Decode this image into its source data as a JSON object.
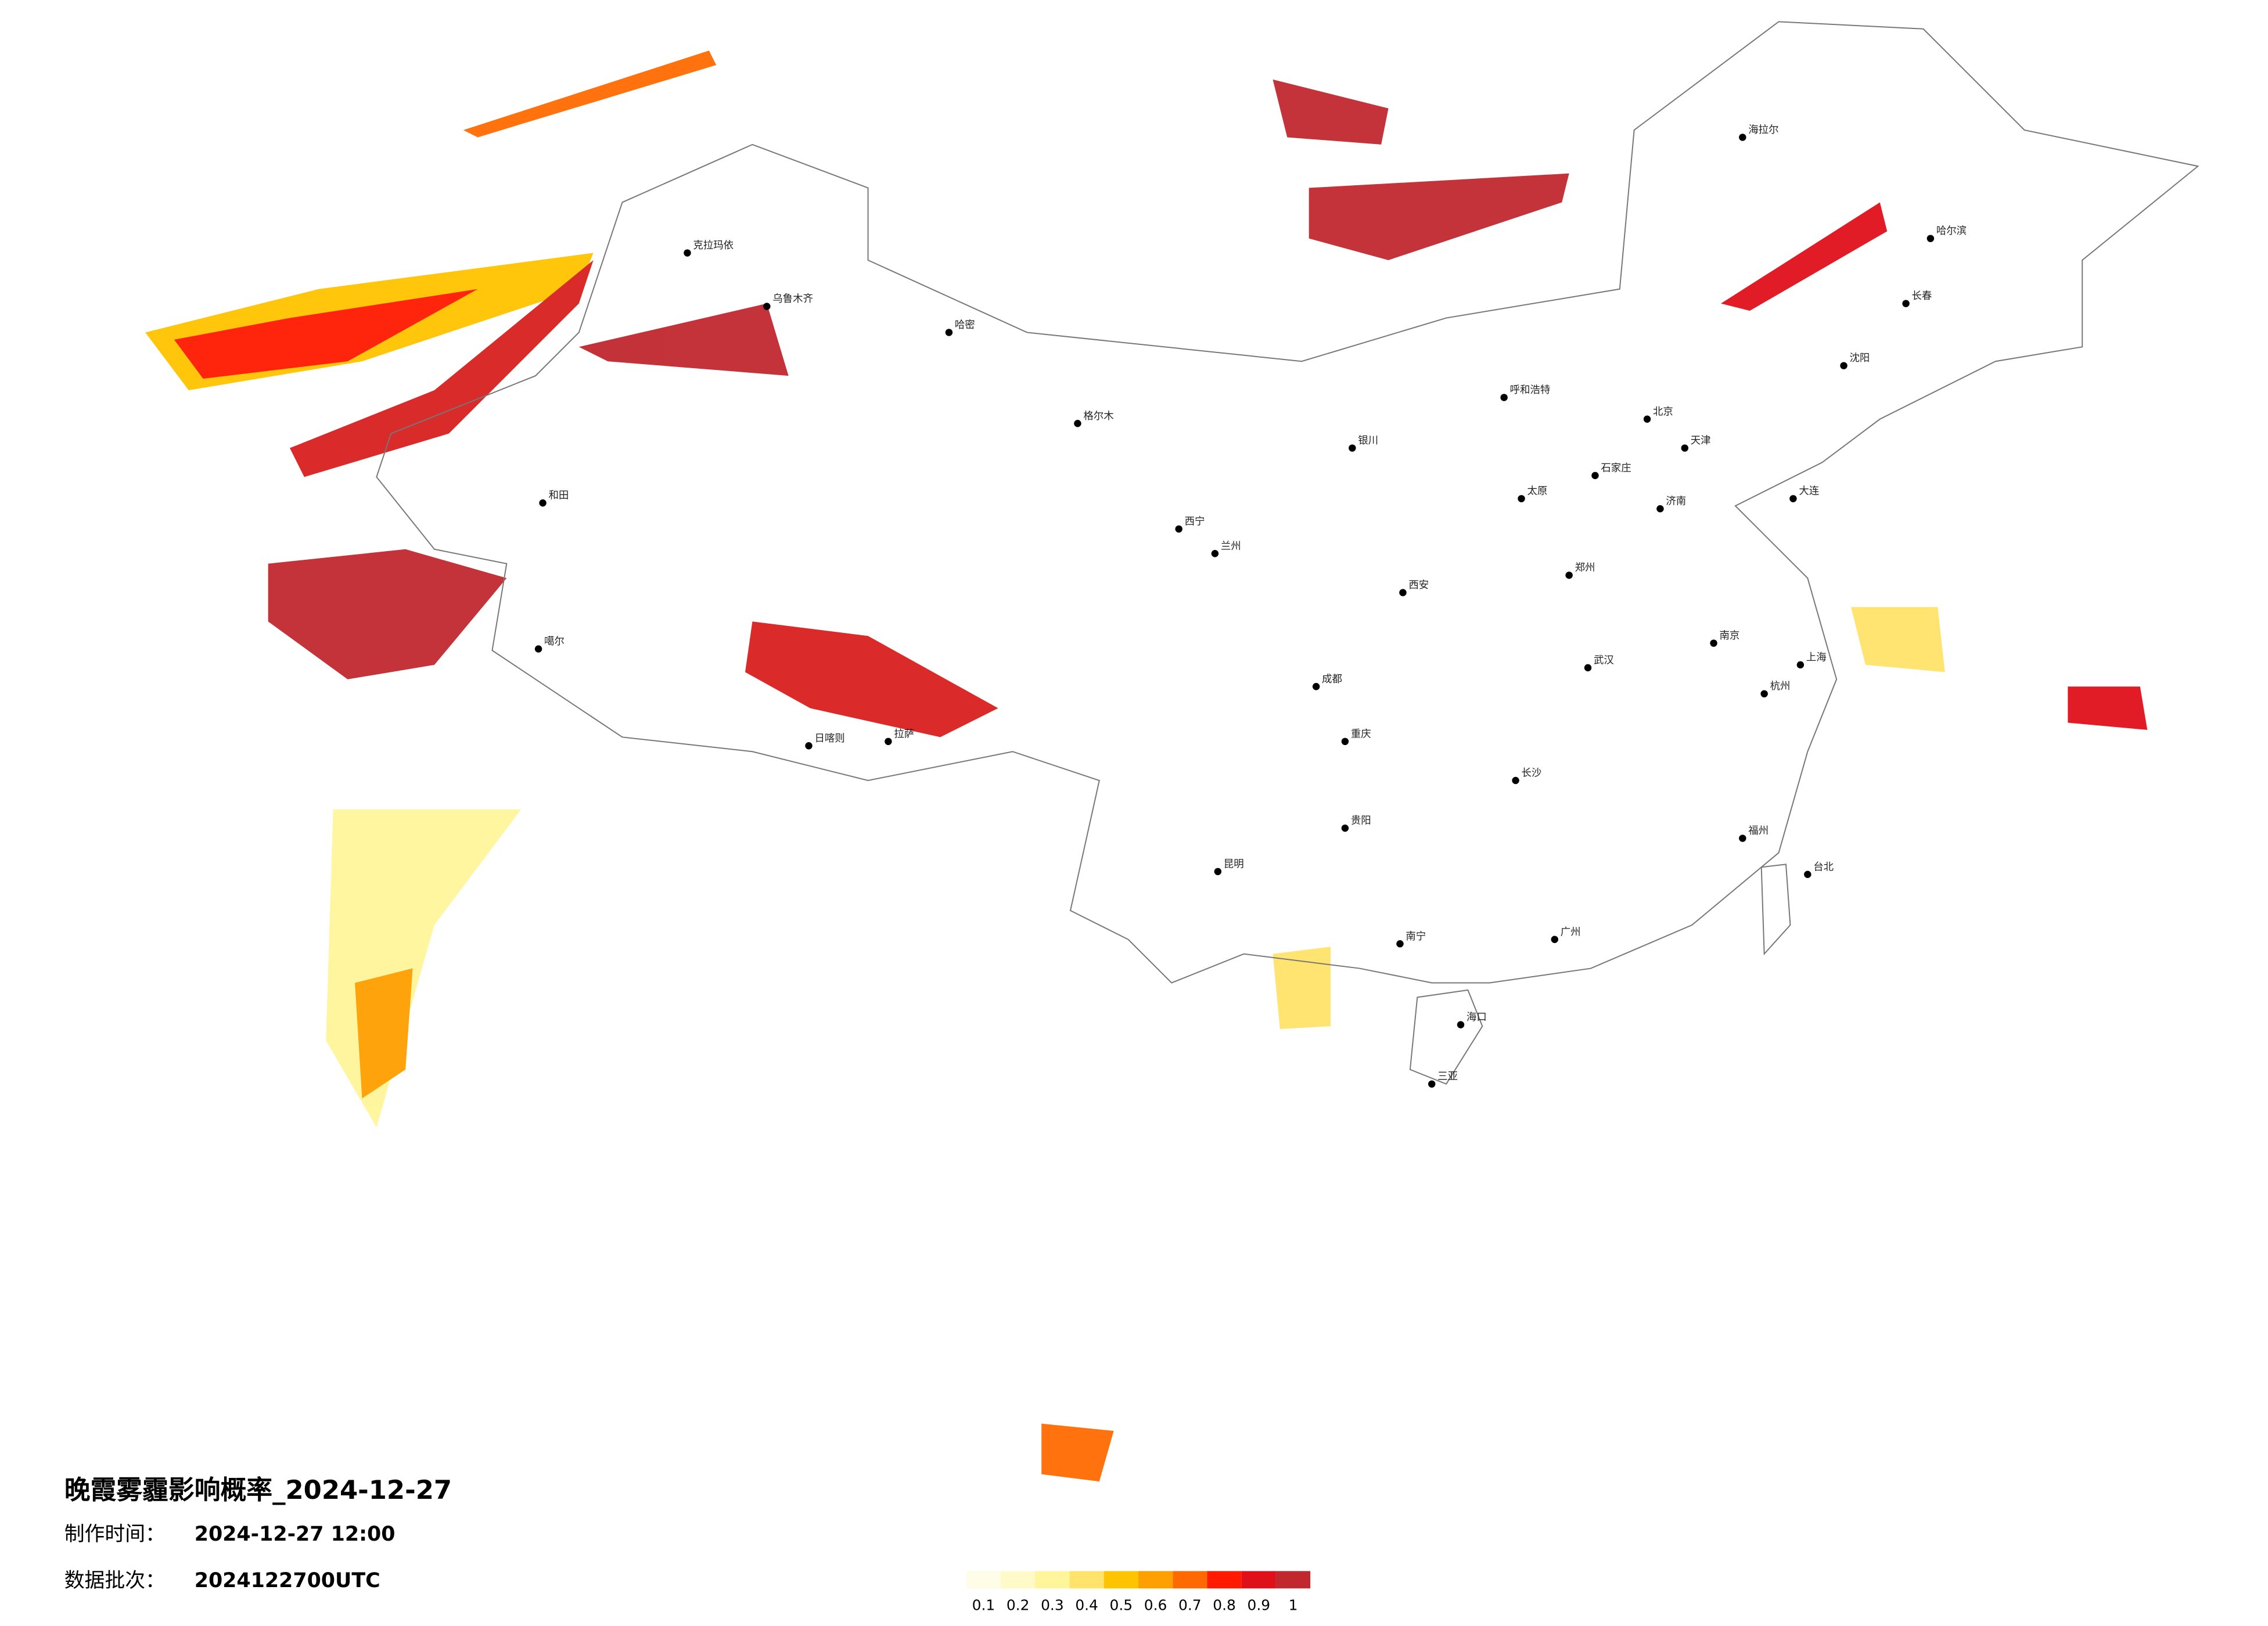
{
  "map": {
    "title": "晚霞雾霾影响概率_2024-12-27",
    "production_time_label": "制作时间：",
    "production_time": "2024-12-27 12:00",
    "batch_label": "数据批次：",
    "batch": "2024122700UTC",
    "colorbar": {
      "ticks": [
        0.1,
        0.2,
        0.3,
        0.4,
        0.5,
        0.6,
        0.7,
        0.8,
        0.9,
        1
      ],
      "colors": [
        "#fffde8",
        "#fffac8",
        "#fff59a",
        "#ffe36a",
        "#ffc400",
        "#ff9f00",
        "#ff6a00",
        "#ff1a00",
        "#e0101a",
        "#c0282e"
      ]
    },
    "cities": [
      "克拉玛依",
      "乌鲁木齐",
      "哈密",
      "和田",
      "噶尔",
      "格尔木",
      "拉萨",
      "日喀则",
      "西宁",
      "兰州",
      "成都",
      "重庆",
      "昆明",
      "贵阳",
      "南宁",
      "海口",
      "三亚",
      "广州",
      "长沙",
      "武汉",
      "郑州",
      "西安",
      "北京",
      "天津",
      "石家庄",
      "太原",
      "济南",
      "上海",
      "南京",
      "杭州",
      "福州",
      "台北",
      "哈尔滨",
      "长春",
      "沈阳",
      "呼和浩特",
      "银川",
      "海拉尔",
      "大连"
    ]
  }
}
